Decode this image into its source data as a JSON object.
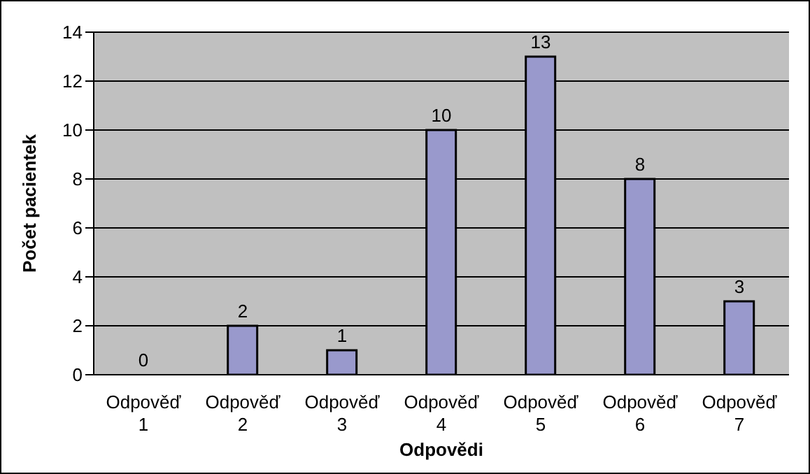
{
  "chart_data": {
    "type": "bar",
    "xlabel": "Odpovědi",
    "ylabel": "Počet pacientek",
    "categories": [
      "Odpověď 1",
      "Odpověď 2",
      "Odpověď 3",
      "Odpověď 4",
      "Odpověď 5",
      "Odpověď 6",
      "Odpověď 7"
    ],
    "values": [
      0,
      2,
      1,
      10,
      13,
      8,
      3
    ],
    "color": "#9999cc",
    "ylim": [
      0,
      14
    ],
    "yticks": [
      0,
      2,
      4,
      6,
      8,
      10,
      12,
      14
    ],
    "grid": "y",
    "data_labels": true
  }
}
